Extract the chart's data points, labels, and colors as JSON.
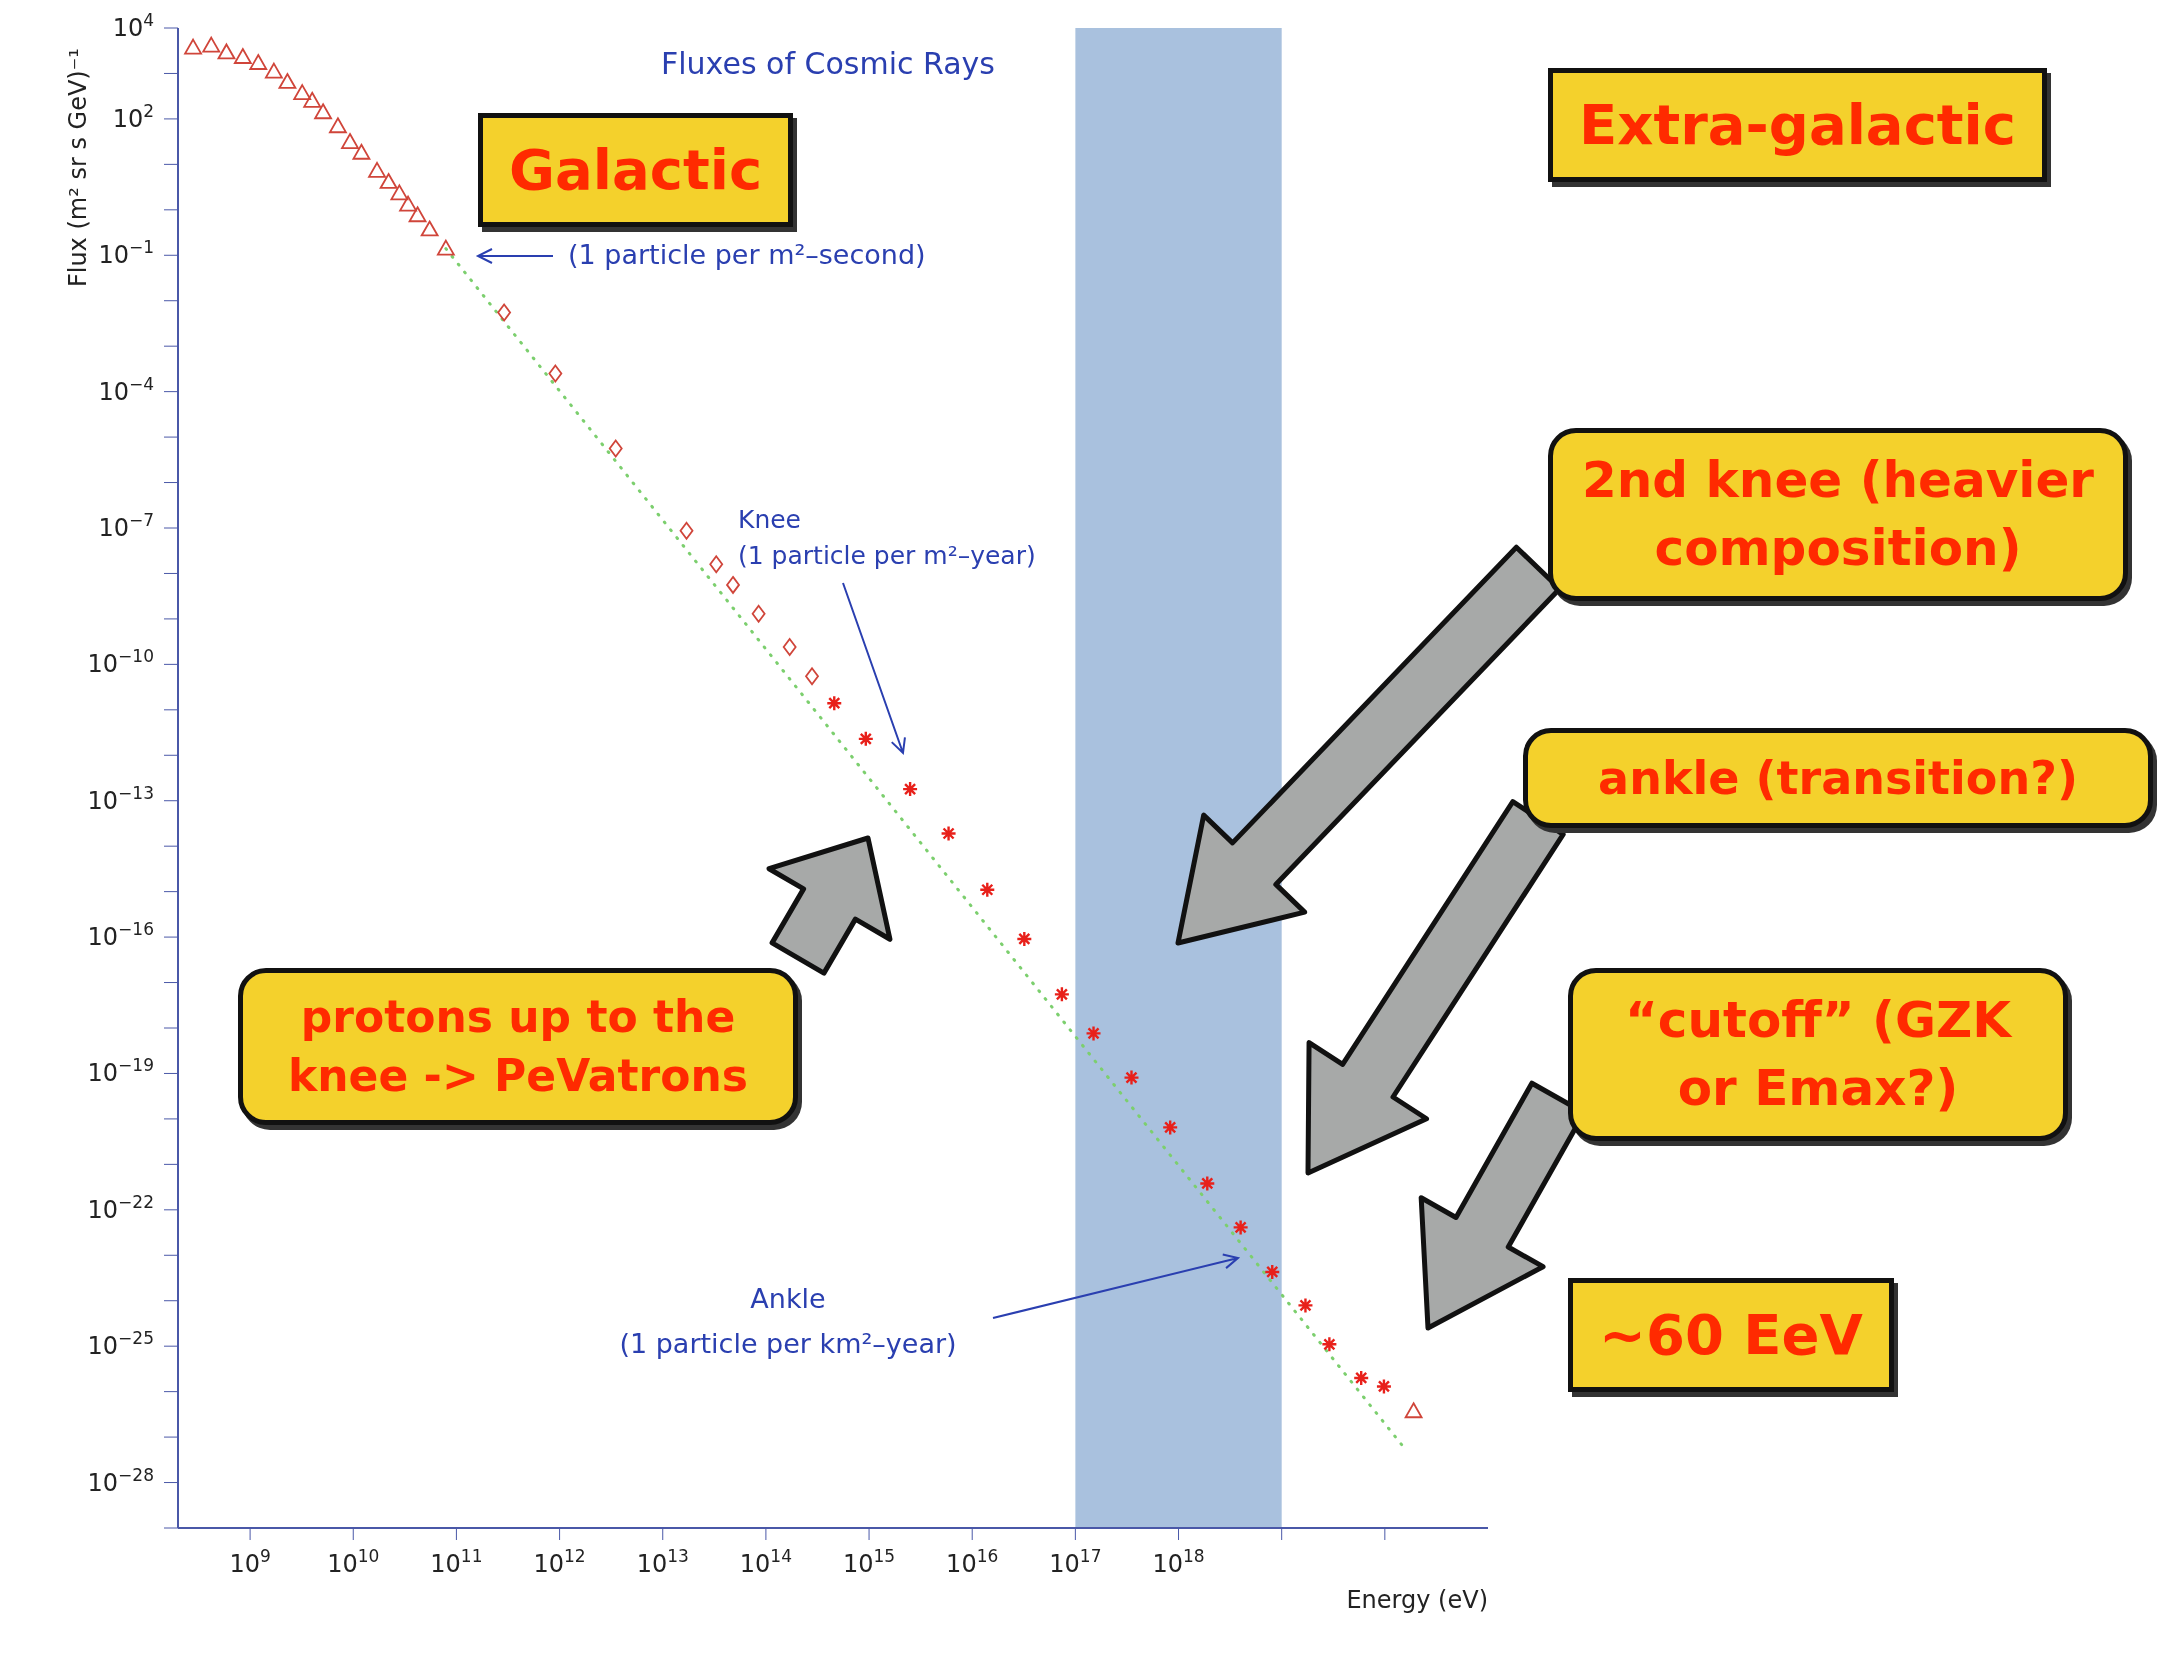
{
  "chart_data": {
    "type": "scatter",
    "title": "Fluxes of Cosmic Rays",
    "xlabel": "Energy (eV)",
    "ylabel": "Flux (m² sr s GeV)⁻¹",
    "log": "xy",
    "xlim": [
      200000000.0,
      1e+21
    ],
    "ylim": [
      1e-29,
      10000.0
    ],
    "xticks": [
      {
        "value": 1000000000.0,
        "label": "10$^{9}$"
      },
      {
        "value": 10000000000.0,
        "label": "10$^{10}$"
      },
      {
        "value": 100000000000.0,
        "label": "10$^{11}$"
      },
      {
        "value": 1000000000000.0,
        "label": "10$^{12}$"
      },
      {
        "value": 10000000000000.0,
        "label": "10$^{13}$"
      },
      {
        "value": 100000000000000.0,
        "label": "10$^{14}$"
      },
      {
        "value": 1000000000000000.0,
        "label": "10$^{15}$"
      },
      {
        "value": 1e+16,
        "label": "10$^{16}$"
      },
      {
        "value": 1e+17,
        "label": "10$^{17}$"
      },
      {
        "value": 1e+18,
        "label": "10$^{18}$"
      },
      {
        "value": 1e+19,
        "label": null
      },
      {
        "value": 1e+20,
        "label": null
      }
    ],
    "yticks": [
      {
        "value": 10000.0,
        "label": "10$^{4}$"
      },
      {
        "value": 1000.0,
        "label": null
      },
      {
        "value": 100.0,
        "label": "10$^{2}$"
      },
      {
        "value": 10.0,
        "label": null
      },
      {
        "value": 1,
        "label": null
      },
      {
        "value": 0.1,
        "label": "10$^{−1}$"
      },
      {
        "value": 0.01,
        "label": null
      },
      {
        "value": 0.001,
        "label": null
      },
      {
        "value": 0.0001,
        "label": "10$^{−4}$"
      },
      {
        "value": 1e-05,
        "label": null
      },
      {
        "value": 1e-06,
        "label": null
      },
      {
        "value": 1e-07,
        "label": "10$^{−7}$"
      },
      {
        "value": 1e-08,
        "label": null
      },
      {
        "value": 1e-09,
        "label": null
      },
      {
        "value": 1e-10,
        "label": "10$^{−10}$"
      },
      {
        "value": 1e-11,
        "label": null
      },
      {
        "value": 1e-12,
        "label": null
      },
      {
        "value": 1e-13,
        "label": "10$^{−13}$"
      },
      {
        "value": 1e-14,
        "label": null
      },
      {
        "value": 1e-15,
        "label": null
      },
      {
        "value": 1e-16,
        "label": "10$^{−16}$"
      },
      {
        "value": 1e-17,
        "label": null
      },
      {
        "value": 1e-18,
        "label": null
      },
      {
        "value": 1e-19,
        "label": "10$^{−19}$"
      },
      {
        "value": 1e-20,
        "label": null
      },
      {
        "value": 1e-21,
        "label": null
      },
      {
        "value": 1e-22,
        "label": "10$^{−22}$"
      },
      {
        "value": 1e-23,
        "label": null
      },
      {
        "value": 1e-24,
        "label": null
      },
      {
        "value": 1e-25,
        "label": "10$^{−25}$"
      },
      {
        "value": 1e-26,
        "label": null
      },
      {
        "value": 1e-27,
        "label": null
      },
      {
        "value": 1e-28,
        "label": "10$^{−28}$"
      },
      {
        "value": 1e-29,
        "label": null
      }
    ],
    "series": [
      {
        "type": "line",
        "color": "#7ccf6e",
        "line_style": "dotted",
        "marker": "none",
        "x": [
          79000000000.0,
          1.6e+20
        ],
        "values": [
          0.14,
          5.2e-28
        ]
      },
      {
        "color": "#d0453a",
        "marker": "triangle",
        "x": [
          280000000.0,
          420000000.0,
          590000000.0,
          850000000.0,
          1200000000.0,
          1700000000.0,
          2300000000.0,
          3200000000.0,
          4000000000.0,
          5100000000.0,
          7100000000.0,
          9300000000.0,
          12000000000.0,
          17000000000.0,
          22000000000.0,
          28000000000.0,
          34000000000.0,
          42000000000.0,
          55000000000.0,
          79000000000.0,
          1.9e+20
        ],
        "values": [
          3700.0,
          4100.0,
          2900.0,
          2300.0,
          1700.0,
          1100.0,
          650.0,
          370.0,
          250.0,
          140.0,
          69,
          31,
          18,
          7.2,
          4.1,
          2.3,
          1.3,
          0.76,
          0.37,
          0.14,
          3.7e-27
        ]
      },
      {
        "color": "#d0453a",
        "marker": "diamond",
        "x": [
          290000000000.0,
          910000000000.0,
          3500000000000.0,
          17000000000000.0,
          33000000000000.0,
          48000000000000.0,
          85000000000000.0,
          170000000000000.0,
          280000000000000.0
        ],
        "values": [
          0.0055,
          0.00025,
          5.6e-06,
          8.7e-08,
          1.6e-08,
          5.6e-09,
          1.3e-09,
          2.4e-10,
          5.5e-11
        ]
      },
      {
        "color": "#e8201a",
        "marker": "cross",
        "x": [
          460000000000000.0,
          930000000000000.0,
          2500000000000000.0,
          5900000000000000.0,
          1.4e+16,
          3.2e+16,
          7.4e+16,
          1.5e+17,
          3.5e+17,
          8.3e+17,
          1.9e+18,
          4e+18,
          8.1e+18,
          1.7e+19,
          2.9e+19,
          5.9e+19,
          9.8e+19
        ],
        "values": [
          1.4e-11,
          2.3e-12,
          1.8e-13,
          1.9e-14,
          1.1e-15,
          9.1e-17,
          5.5e-18,
          7.6e-19,
          8.1e-20,
          6.5e-21,
          3.8e-22,
          4.1e-23,
          4.3e-24,
          7.9e-25,
          1.1e-25,
          2e-26,
          1.3e-26
        ]
      }
    ],
    "bands": [
      {
        "axis": "x",
        "from": 1e+17,
        "to": 1e+19,
        "color": "#a9c1de"
      }
    ],
    "annotations": [
      "(1 particle per m²–second)",
      "Knee",
      "(1 particle per m²–year)",
      "Ankle",
      "(1 particle per km²–year)",
      "Galactic",
      "Extra-galactic",
      "2nd knee (heavier composition)",
      "ankle (transition?)",
      "“cutoff” (GZK or Emax?)",
      "protons up to the knee -> PeVatrons",
      "~60 EeV"
    ]
  }
}
